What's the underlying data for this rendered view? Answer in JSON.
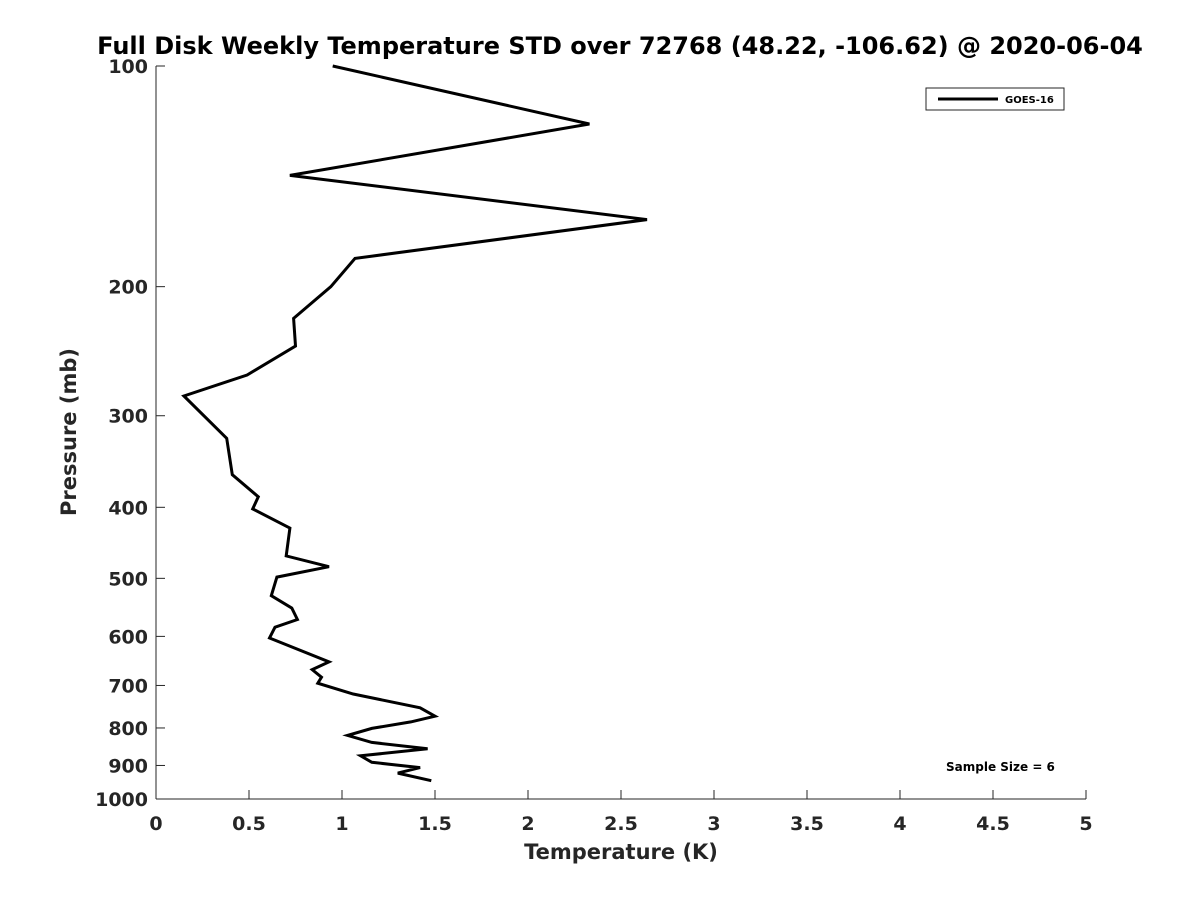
{
  "chart_data": {
    "type": "line",
    "title": "Full Disk Weekly Temperature STD over 72768 (48.22, -106.62) @ 2020-06-04",
    "xlabel": "Temperature (K)",
    "ylabel": "Pressure (mb)",
    "xlim": [
      0,
      5
    ],
    "ylim": [
      1000,
      100
    ],
    "yscale": "log",
    "y_reversed": true,
    "grid": false,
    "legend_placement": "top-right",
    "x_ticks": [
      {
        "value": 0,
        "label": "0"
      },
      {
        "value": 0.5,
        "label": "0.5"
      },
      {
        "value": 1,
        "label": "1"
      },
      {
        "value": 1.5,
        "label": "1.5"
      },
      {
        "value": 2,
        "label": "2"
      },
      {
        "value": 2.5,
        "label": "2.5"
      },
      {
        "value": 3,
        "label": "3"
      },
      {
        "value": 3.5,
        "label": "3.5"
      },
      {
        "value": 4,
        "label": "4"
      },
      {
        "value": 4.5,
        "label": "4.5"
      },
      {
        "value": 5,
        "label": "5"
      }
    ],
    "y_ticks": [
      {
        "value": 100,
        "label": "100"
      },
      {
        "value": 200,
        "label": "200"
      },
      {
        "value": 300,
        "label": "300"
      },
      {
        "value": 400,
        "label": "400"
      },
      {
        "value": 500,
        "label": "500"
      },
      {
        "value": 600,
        "label": "600"
      },
      {
        "value": 700,
        "label": "700"
      },
      {
        "value": 800,
        "label": "800"
      },
      {
        "value": 900,
        "label": "900"
      },
      {
        "value": 1000,
        "label": "1000"
      }
    ],
    "series": [
      {
        "name": "GOES-16",
        "color": "#000000",
        "x": [
          0.95,
          2.33,
          0.72,
          2.64,
          1.07,
          0.94,
          0.74,
          0.75,
          0.49,
          0.15,
          0.38,
          0.41,
          0.55,
          0.52,
          0.72,
          0.7,
          0.93,
          0.65,
          0.62,
          0.73,
          0.76,
          0.64,
          0.61,
          0.93,
          0.84,
          0.89,
          0.87,
          1.06,
          1.42,
          1.5,
          1.37,
          1.16,
          1.03,
          1.16,
          1.46,
          1.1,
          1.16,
          1.42,
          1.3,
          1.48
        ],
        "y": [
          100,
          120,
          141,
          162,
          183,
          200,
          221,
          241,
          264,
          282,
          322,
          361,
          387,
          402,
          427,
          466,
          482,
          498,
          528,
          549,
          569,
          583,
          603,
          650,
          666,
          682,
          695,
          719,
          751,
          771,
          785,
          801,
          819,
          837,
          854,
          873,
          891,
          906,
          922,
          944
        ]
      }
    ],
    "annotations": [
      {
        "text": "Sample Size = 6"
      }
    ]
  },
  "colors": {
    "axis": "#262626",
    "line": "#000000",
    "background": "#ffffff"
  }
}
